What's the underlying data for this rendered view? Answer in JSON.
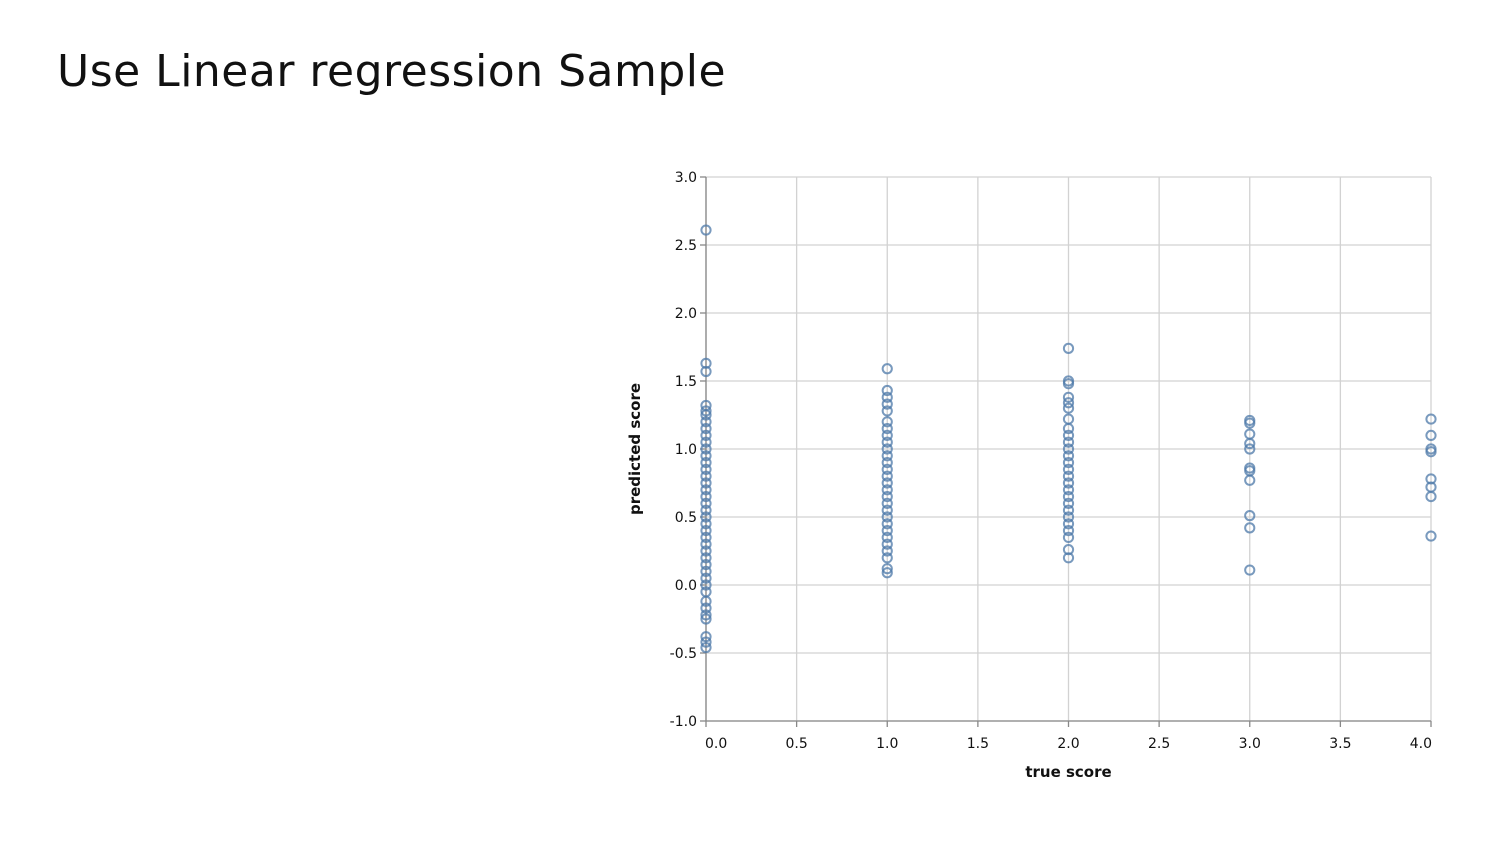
{
  "slide": {
    "title": "Use Linear regression Sample"
  },
  "colors": {
    "point": "#4c78a8",
    "grid": "#d2d2d2",
    "axis": "#888888"
  },
  "chart_data": {
    "type": "scatter",
    "title": "",
    "xlabel": "true score",
    "ylabel": "predicted score",
    "xlim": [
      0,
      4
    ],
    "ylim": [
      -1,
      3
    ],
    "xticks": [
      0.0,
      0.5,
      1.0,
      1.5,
      2.0,
      2.5,
      3.0,
      3.5,
      4.0
    ],
    "yticks": [
      -1.0,
      -0.5,
      0.0,
      0.5,
      1.0,
      1.5,
      2.0,
      2.5,
      3.0
    ],
    "grid": true,
    "points": [
      {
        "x": 0,
        "y": 2.61
      },
      {
        "x": 0,
        "y": 1.63
      },
      {
        "x": 0,
        "y": 1.57
      },
      {
        "x": 0,
        "y": 1.32
      },
      {
        "x": 0,
        "y": 1.28
      },
      {
        "x": 0,
        "y": 1.25
      },
      {
        "x": 0,
        "y": 1.2
      },
      {
        "x": 0,
        "y": 1.15
      },
      {
        "x": 0,
        "y": 1.1
      },
      {
        "x": 0,
        "y": 1.05
      },
      {
        "x": 0,
        "y": 1.0
      },
      {
        "x": 0,
        "y": 0.95
      },
      {
        "x": 0,
        "y": 0.9
      },
      {
        "x": 0,
        "y": 0.85
      },
      {
        "x": 0,
        "y": 0.8
      },
      {
        "x": 0,
        "y": 0.75
      },
      {
        "x": 0,
        "y": 0.7
      },
      {
        "x": 0,
        "y": 0.65
      },
      {
        "x": 0,
        "y": 0.6
      },
      {
        "x": 0,
        "y": 0.55
      },
      {
        "x": 0,
        "y": 0.5
      },
      {
        "x": 0,
        "y": 0.45
      },
      {
        "x": 0,
        "y": 0.4
      },
      {
        "x": 0,
        "y": 0.35
      },
      {
        "x": 0,
        "y": 0.3
      },
      {
        "x": 0,
        "y": 0.25
      },
      {
        "x": 0,
        "y": 0.2
      },
      {
        "x": 0,
        "y": 0.15
      },
      {
        "x": 0,
        "y": 0.1
      },
      {
        "x": 0,
        "y": 0.05
      },
      {
        "x": 0,
        "y": 0.0
      },
      {
        "x": 0,
        "y": -0.05
      },
      {
        "x": 0,
        "y": -0.12
      },
      {
        "x": 0,
        "y": -0.17
      },
      {
        "x": 0,
        "y": -0.22
      },
      {
        "x": 0,
        "y": -0.25
      },
      {
        "x": 0,
        "y": -0.38
      },
      {
        "x": 0,
        "y": -0.42
      },
      {
        "x": 0,
        "y": -0.46
      },
      {
        "x": 1,
        "y": 1.59
      },
      {
        "x": 1,
        "y": 1.43
      },
      {
        "x": 1,
        "y": 1.38
      },
      {
        "x": 1,
        "y": 1.33
      },
      {
        "x": 1,
        "y": 1.28
      },
      {
        "x": 1,
        "y": 1.2
      },
      {
        "x": 1,
        "y": 1.15
      },
      {
        "x": 1,
        "y": 1.1
      },
      {
        "x": 1,
        "y": 1.05
      },
      {
        "x": 1,
        "y": 1.0
      },
      {
        "x": 1,
        "y": 0.95
      },
      {
        "x": 1,
        "y": 0.9
      },
      {
        "x": 1,
        "y": 0.85
      },
      {
        "x": 1,
        "y": 0.8
      },
      {
        "x": 1,
        "y": 0.75
      },
      {
        "x": 1,
        "y": 0.7
      },
      {
        "x": 1,
        "y": 0.65
      },
      {
        "x": 1,
        "y": 0.6
      },
      {
        "x": 1,
        "y": 0.55
      },
      {
        "x": 1,
        "y": 0.5
      },
      {
        "x": 1,
        "y": 0.45
      },
      {
        "x": 1,
        "y": 0.4
      },
      {
        "x": 1,
        "y": 0.35
      },
      {
        "x": 1,
        "y": 0.3
      },
      {
        "x": 1,
        "y": 0.25
      },
      {
        "x": 1,
        "y": 0.2
      },
      {
        "x": 1,
        "y": 0.12
      },
      {
        "x": 1,
        "y": 0.09
      },
      {
        "x": 2,
        "y": 1.74
      },
      {
        "x": 2,
        "y": 1.5
      },
      {
        "x": 2,
        "y": 1.48
      },
      {
        "x": 2,
        "y": 1.38
      },
      {
        "x": 2,
        "y": 1.34
      },
      {
        "x": 2,
        "y": 1.3
      },
      {
        "x": 2,
        "y": 1.22
      },
      {
        "x": 2,
        "y": 1.15
      },
      {
        "x": 2,
        "y": 1.1
      },
      {
        "x": 2,
        "y": 1.05
      },
      {
        "x": 2,
        "y": 1.0
      },
      {
        "x": 2,
        "y": 0.95
      },
      {
        "x": 2,
        "y": 0.9
      },
      {
        "x": 2,
        "y": 0.85
      },
      {
        "x": 2,
        "y": 0.8
      },
      {
        "x": 2,
        "y": 0.75
      },
      {
        "x": 2,
        "y": 0.7
      },
      {
        "x": 2,
        "y": 0.65
      },
      {
        "x": 2,
        "y": 0.6
      },
      {
        "x": 2,
        "y": 0.55
      },
      {
        "x": 2,
        "y": 0.5
      },
      {
        "x": 2,
        "y": 0.45
      },
      {
        "x": 2,
        "y": 0.4
      },
      {
        "x": 2,
        "y": 0.35
      },
      {
        "x": 2,
        "y": 0.26
      },
      {
        "x": 2,
        "y": 0.2
      },
      {
        "x": 3,
        "y": 1.21
      },
      {
        "x": 3,
        "y": 1.19
      },
      {
        "x": 3,
        "y": 1.11
      },
      {
        "x": 3,
        "y": 1.04
      },
      {
        "x": 3,
        "y": 1.0
      },
      {
        "x": 3,
        "y": 0.86
      },
      {
        "x": 3,
        "y": 0.84
      },
      {
        "x": 3,
        "y": 0.77
      },
      {
        "x": 3,
        "y": 0.51
      },
      {
        "x": 3,
        "y": 0.42
      },
      {
        "x": 3,
        "y": 0.11
      },
      {
        "x": 4,
        "y": 1.22
      },
      {
        "x": 4,
        "y": 1.1
      },
      {
        "x": 4,
        "y": 1.0
      },
      {
        "x": 4,
        "y": 0.98
      },
      {
        "x": 4,
        "y": 0.78
      },
      {
        "x": 4,
        "y": 0.72
      },
      {
        "x": 4,
        "y": 0.65
      },
      {
        "x": 4,
        "y": 0.36
      }
    ]
  }
}
